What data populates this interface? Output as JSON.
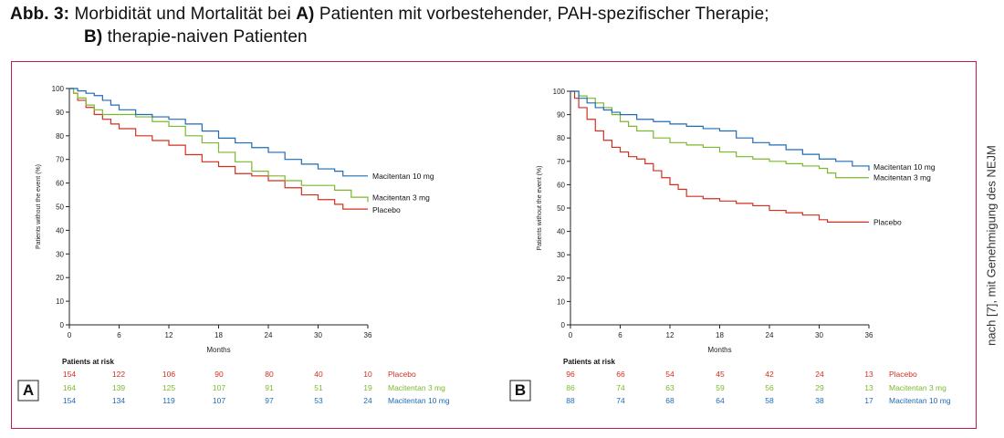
{
  "caption": {
    "label": "Abb. 3:",
    "text1": " Morbidität und Mortalität bei ",
    "a_marker": "A)",
    "text2": " Patienten mit vorbestehender, PAH-spezifischer Therapie;",
    "b_marker": "B)",
    "text3": " therapie-naiven Patienten"
  },
  "credit": "nach [7], mit Genehmigung des NEJM",
  "colors": {
    "placebo": "#d32f1f",
    "macitentan_3mg": "#7cb82f",
    "macitentan_10mg": "#1f6bb5",
    "frame": "#c2185b"
  },
  "chart_data": [
    {
      "type": "line",
      "panel": "A",
      "xlabel": "Months",
      "ylabel": "Patients without the event (%)",
      "xlim": [
        0,
        36
      ],
      "ylim": [
        0,
        100
      ],
      "xticks": [
        0,
        6,
        12,
        18,
        24,
        30,
        36
      ],
      "yticks": [
        0,
        10,
        20,
        30,
        40,
        50,
        60,
        70,
        80,
        90,
        100
      ],
      "series": [
        {
          "name": "Placebo",
          "color": "#d32f1f",
          "x": [
            0,
            0.5,
            1,
            2,
            3,
            4,
            5,
            6,
            8,
            10,
            12,
            14,
            16,
            18,
            20,
            22,
            24,
            26,
            28,
            30,
            32,
            33,
            36
          ],
          "y": [
            100,
            98,
            95,
            92,
            89,
            87,
            85,
            83,
            80,
            78,
            76,
            72,
            69,
            67,
            64,
            63,
            61,
            58,
            55,
            53,
            51,
            49,
            49
          ]
        },
        {
          "name": "Macitentan 3 mg",
          "color": "#7cb82f",
          "x": [
            0,
            0.5,
            1,
            2,
            3,
            4,
            5,
            6,
            8,
            10,
            12,
            14,
            16,
            18,
            20,
            22,
            24,
            26,
            28,
            30,
            32,
            34,
            36
          ],
          "y": [
            100,
            98,
            96,
            93,
            91,
            89,
            89,
            89,
            88,
            86,
            84,
            80,
            77,
            73,
            69,
            65,
            63,
            61,
            59,
            59,
            57,
            54,
            52
          ]
        },
        {
          "name": "Macitentan 10 mg",
          "color": "#1f6bb5",
          "x": [
            0,
            1,
            2,
            3,
            4,
            5,
            6,
            8,
            10,
            12,
            14,
            16,
            18,
            20,
            22,
            24,
            26,
            28,
            30,
            32,
            33,
            36
          ],
          "y": [
            100,
            99,
            98,
            97,
            95,
            93,
            91,
            89,
            88,
            87,
            85,
            82,
            79,
            77,
            75,
            73,
            70,
            68,
            66,
            65,
            63,
            63
          ]
        }
      ],
      "annotations": [
        "Macitentan 10 mg",
        "Macitentan 3 mg",
        "Placebo"
      ],
      "risk_table": {
        "title": "Patients at risk",
        "rows": [
          {
            "name": "Placebo",
            "color": "#d32f1f",
            "values": [
              "154",
              "122",
              "106",
              "90",
              "80",
              "40",
              "10"
            ]
          },
          {
            "name": "Macitentan 3 mg",
            "color": "#7cb82f",
            "values": [
              "164",
              "139",
              "125",
              "107",
              "91",
              "51",
              "19"
            ]
          },
          {
            "name": "Macitentan 10 mg",
            "color": "#1f6bb5",
            "values": [
              "154",
              "134",
              "119",
              "107",
              "97",
              "53",
              "24"
            ]
          }
        ]
      }
    },
    {
      "type": "line",
      "panel": "B",
      "xlabel": "Months",
      "ylabel": "Patients without the event (%)",
      "xlim": [
        0,
        36
      ],
      "ylim": [
        0,
        100
      ],
      "xticks": [
        0,
        6,
        12,
        18,
        24,
        30,
        36
      ],
      "yticks": [
        0,
        10,
        20,
        30,
        40,
        50,
        60,
        70,
        80,
        90,
        100
      ],
      "series": [
        {
          "name": "Placebo",
          "color": "#d32f1f",
          "x": [
            0,
            0.5,
            1,
            2,
            3,
            4,
            5,
            6,
            7,
            8,
            9,
            10,
            11,
            12,
            13,
            14,
            16,
            18,
            20,
            22,
            24,
            26,
            28,
            30,
            31,
            36
          ],
          "y": [
            100,
            97,
            93,
            88,
            83,
            79,
            76,
            74,
            72,
            71,
            69,
            66,
            63,
            60,
            58,
            55,
            54,
            53,
            52,
            51,
            49,
            48,
            47,
            45,
            44,
            44
          ]
        },
        {
          "name": "Macitentan 3 mg",
          "color": "#7cb82f",
          "x": [
            0,
            1,
            2,
            3,
            4,
            5,
            6,
            7,
            8,
            10,
            12,
            14,
            16,
            18,
            20,
            22,
            24,
            26,
            28,
            30,
            31,
            32,
            36
          ],
          "y": [
            100,
            98,
            97,
            95,
            93,
            90,
            87,
            85,
            83,
            80,
            78,
            77,
            76,
            74,
            72,
            71,
            70,
            69,
            68,
            67,
            65,
            63,
            63
          ]
        },
        {
          "name": "Macitentan 10 mg",
          "color": "#1f6bb5",
          "x": [
            0,
            1,
            2,
            3,
            4,
            5,
            6,
            8,
            10,
            12,
            14,
            16,
            18,
            20,
            22,
            24,
            26,
            28,
            30,
            32,
            34,
            36
          ],
          "y": [
            100,
            97,
            95,
            93,
            92,
            91,
            90,
            88,
            87,
            86,
            85,
            84,
            83,
            80,
            78,
            77,
            75,
            73,
            71,
            70,
            68,
            66
          ]
        }
      ],
      "annotations": [
        "Macitentan 10 mg",
        "Macitentan 3 mg",
        "Placebo"
      ],
      "risk_table": {
        "title": "Patients at risk",
        "rows": [
          {
            "name": "Placebo",
            "color": "#d32f1f",
            "values": [
              "96",
              "66",
              "54",
              "45",
              "42",
              "24",
              "13"
            ]
          },
          {
            "name": "Macitentan 3 mg",
            "color": "#7cb82f",
            "values": [
              "86",
              "74",
              "63",
              "59",
              "56",
              "29",
              "13"
            ]
          },
          {
            "name": "Macitentan 10 mg",
            "color": "#1f6bb5",
            "values": [
              "88",
              "74",
              "68",
              "64",
              "58",
              "38",
              "17"
            ]
          }
        ]
      }
    }
  ]
}
